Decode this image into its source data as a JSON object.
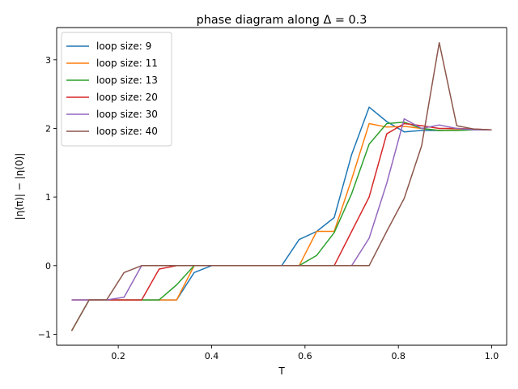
{
  "chart_data": {
    "type": "line",
    "title": "phase diagram along Δ = 0.3",
    "xlabel": "T",
    "ylabel": "|η(π)| − |η(0)|",
    "xlim": [
      0.068,
      1.032
    ],
    "ylim": [
      -1.16,
      3.47
    ],
    "xticks": [
      0.2,
      0.4,
      0.6,
      0.8,
      1.0
    ],
    "xtick_labels": [
      "0.2",
      "0.4",
      "0.6",
      "0.8",
      "1.0"
    ],
    "yticks": [
      -1,
      0,
      1,
      2,
      3
    ],
    "ytick_labels": [
      "−1",
      "0",
      "1",
      "2",
      "3"
    ],
    "grid": false,
    "legend_position": "top-left",
    "x": [
      0.1,
      0.1375,
      0.175,
      0.2125,
      0.25,
      0.2875,
      0.325,
      0.3625,
      0.4,
      0.4375,
      0.475,
      0.5125,
      0.55,
      0.5875,
      0.625,
      0.6625,
      0.7,
      0.7375,
      0.775,
      0.8125,
      0.85,
      0.8875,
      0.925,
      0.9625,
      1.0
    ],
    "series": [
      {
        "name": "loop size: 9",
        "color": "#1f77b4",
        "values": [
          -0.5,
          -0.5,
          -0.5,
          -0.5,
          -0.5,
          -0.5,
          -0.5,
          -0.1,
          0,
          0,
          0,
          0,
          0,
          0.38,
          0.5,
          0.7,
          1.62,
          2.31,
          2.1,
          1.95,
          1.97,
          1.97,
          1.98,
          1.98,
          1.98
        ]
      },
      {
        "name": "loop size: 11",
        "color": "#ff7f0e",
        "values": [
          -0.5,
          -0.5,
          -0.5,
          -0.5,
          -0.5,
          -0.5,
          -0.5,
          0,
          0,
          0,
          0,
          0,
          0,
          0,
          0.5,
          0.5,
          1.26,
          2.07,
          2.02,
          2.03,
          2.0,
          1.97,
          1.98,
          1.98,
          1.98
        ]
      },
      {
        "name": "loop size: 13",
        "color": "#2ca02c",
        "values": [
          -0.95,
          -0.5,
          -0.5,
          -0.5,
          -0.5,
          -0.5,
          -0.28,
          0,
          0,
          0,
          0,
          0,
          0,
          0,
          0.15,
          0.48,
          1.05,
          1.77,
          2.07,
          2.09,
          2.0,
          1.97,
          1.97,
          1.98,
          1.98
        ]
      },
      {
        "name": "loop size: 20",
        "color": "#d62728",
        "values": [
          -0.5,
          -0.5,
          -0.5,
          -0.5,
          -0.5,
          -0.05,
          0,
          0,
          0,
          0,
          0,
          0,
          0,
          0,
          0,
          0,
          0.5,
          1.0,
          1.92,
          2.07,
          2.04,
          2.0,
          2.0,
          1.99,
          1.98
        ]
      },
      {
        "name": "loop size: 30",
        "color": "#9467bd",
        "values": [
          -0.5,
          -0.5,
          -0.5,
          -0.46,
          0,
          0,
          0,
          0,
          0,
          0,
          0,
          0,
          0,
          0,
          0,
          0,
          0,
          0.4,
          1.2,
          2.14,
          2.0,
          2.05,
          2.0,
          1.98,
          1.98
        ]
      },
      {
        "name": "loop size: 40",
        "color": "#8c564b",
        "values": [
          -0.95,
          -0.5,
          -0.5,
          -0.1,
          0,
          0,
          0,
          0,
          0,
          0,
          0,
          0,
          0,
          0,
          0,
          0,
          0,
          0,
          0.5,
          0.98,
          1.75,
          3.25,
          2.04,
          1.99,
          1.98
        ]
      }
    ]
  }
}
